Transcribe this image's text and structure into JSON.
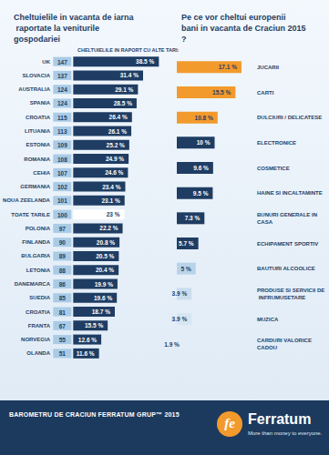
{
  "chart_data": [
    {
      "type": "bar",
      "title": "Cheltuielile in vacanta de iarna raportate la veniturile gospodariei",
      "subtitle": "CHELTUIELILE IN RAPORT CU ALTE TARI:",
      "orientation": "horizontal",
      "categories": [
        "UK",
        "SLOVACIA",
        "AUSTRALIA",
        "SPANIA",
        "CROATIA",
        "LITUANIA",
        "ESTONIA",
        "ROMANIA",
        "CEHIA",
        "GERMANIA",
        "NOUA ZEELANDA",
        "TOATE TARILE",
        "POLONIA",
        "FINLANDA",
        "BULGARIA",
        "LETONIA",
        "DANEMARCA",
        "SUEDIA",
        "CROATIA",
        "FRANTA",
        "NORVEGIA",
        "OLANDA"
      ],
      "index": [
        147,
        137,
        124,
        124,
        115,
        113,
        109,
        108,
        107,
        102,
        101,
        100,
        97,
        90,
        89,
        88,
        86,
        85,
        81,
        67,
        55,
        51
      ],
      "values": [
        38.5,
        31.4,
        29.1,
        28.5,
        26.4,
        26.1,
        25.2,
        24.9,
        24.6,
        23.4,
        23.1,
        23,
        22.2,
        20.8,
        20.5,
        20.4,
        19.9,
        19.6,
        18.7,
        15.5,
        12.6,
        11.6
      ],
      "value_labels": [
        "38.5 %",
        "31.4 %",
        "29.1 %",
        "28.5 %",
        "26.4 %",
        "26.1 %",
        "25.2 %",
        "24.9 %",
        "24.6 %",
        "23.4 %",
        "23.1 %",
        "23 %",
        "22.2 %",
        "20.8 %",
        "20.5 %",
        "20.4 %",
        "19.9 %",
        "19.6 %",
        "18.7 %",
        "15.5 %",
        "12.6 %",
        "11.6 %"
      ],
      "colors": [
        "#1f3d63",
        "#1f3d63",
        "#1f3d63",
        "#1f3d63",
        "#1f3d63",
        "#1f3d63",
        "#1f3d63",
        "#1f3d63",
        "#1f3d63",
        "#1f3d63",
        "#1f3d63",
        "#ffffff",
        "#1f3d63",
        "#1f3d63",
        "#1f3d63",
        "#1f3d63",
        "#1f3d63",
        "#1f3d63",
        "#1f3d63",
        "#1f3d63",
        "#1f3d63",
        "#1f3d63"
      ],
      "xlim": [
        0,
        40
      ],
      "tick_labels": false,
      "grid": false,
      "data_labels": true
    },
    {
      "type": "bar",
      "title": "Pe ce vor cheltui europenii bani in vacanta de Craciun 2015?",
      "orientation": "horizontal",
      "categories": [
        "JUCARII",
        "CARTI",
        "DULCIURI / DELICATESE",
        "ELECTRONICE",
        "COSMETICE",
        "HAINE SI INCALTAMINTE",
        "BUNURI GENERALE IN CASA",
        "ECHIPAMENT SPORTIV",
        "BAUTURI ALCOOLICE",
        "PRODUSE SI SERVICII DE INFRUMUSETARE",
        "MUZICA",
        "CARDURI VALORICE CADOU"
      ],
      "values": [
        17.1,
        15.5,
        10.8,
        10,
        9.6,
        9.5,
        7.3,
        5.7,
        5,
        3.9,
        3.9,
        1.9
      ],
      "value_labels": [
        "17.1 %",
        "15.5 %",
        "10.8 %",
        "10 %",
        "9.6 %",
        "9.5 %",
        "7.3 %",
        "5.7 %",
        "5 %",
        "3.9 %",
        "3.9 %",
        "1.9 %"
      ],
      "colors": [
        "#f39a2d",
        "#f39a2d",
        "#f39a2d",
        "#1f3d63",
        "#1f3d63",
        "#1f3d63",
        "#1f3d63",
        "#1f3d63",
        "#b9d4ea",
        "#c9ddef",
        "#d6e6f3",
        "#e2edf7"
      ],
      "xlim": [
        0,
        20
      ],
      "tick_labels": false,
      "grid": false,
      "data_labels": true
    }
  ],
  "footer": {
    "title": "BAROMETRU DE CRACIUN FERRATUM GRUP™ 2015",
    "logo": "fe",
    "brand": "Ferratum",
    "tagline": "More than money to everyone."
  }
}
